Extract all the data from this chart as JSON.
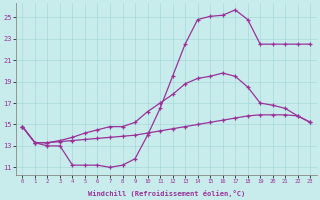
{
  "xlabel": "Windchill (Refroidissement éolien,°C)",
  "bg_color": "#c8ecec",
  "line_color": "#993399",
  "xlim_min": -0.5,
  "xlim_max": 23.5,
  "ylim_min": 10.3,
  "ylim_max": 26.3,
  "yticks": [
    11,
    13,
    15,
    17,
    19,
    21,
    23,
    25
  ],
  "xticks": [
    0,
    1,
    2,
    3,
    4,
    5,
    6,
    7,
    8,
    9,
    10,
    11,
    12,
    13,
    14,
    15,
    16,
    17,
    18,
    19,
    20,
    21,
    22,
    23
  ],
  "line1_x": [
    0,
    1,
    2,
    3,
    4,
    5,
    6,
    7,
    8,
    9,
    10,
    11,
    12,
    13,
    14,
    15,
    16,
    17,
    18,
    19,
    20,
    21,
    22,
    23
  ],
  "line1_y": [
    14.8,
    13.3,
    13.3,
    13.4,
    13.5,
    13.6,
    13.7,
    13.8,
    13.9,
    14.0,
    14.2,
    14.4,
    14.6,
    14.8,
    15.0,
    15.2,
    15.4,
    15.6,
    15.8,
    15.9,
    15.9,
    15.9,
    15.8,
    15.2
  ],
  "line2_x": [
    0,
    1,
    2,
    3,
    4,
    5,
    6,
    7,
    8,
    9,
    10,
    11,
    12,
    13,
    14,
    15,
    16,
    17,
    18,
    19,
    20,
    21,
    22,
    23
  ],
  "line2_y": [
    14.8,
    13.3,
    13.3,
    13.5,
    13.8,
    14.2,
    14.5,
    14.8,
    14.8,
    15.2,
    16.2,
    17.0,
    17.8,
    18.8,
    19.3,
    19.5,
    19.8,
    19.5,
    18.5,
    17.0,
    16.8,
    16.5,
    15.8,
    15.2
  ],
  "line3_x": [
    0,
    1,
    2,
    3,
    4,
    5,
    6,
    7,
    8,
    9,
    10,
    11,
    12,
    13,
    14,
    15,
    16,
    17,
    18,
    19,
    20,
    21,
    22,
    23
  ],
  "line3_y": [
    14.8,
    13.3,
    13.0,
    13.0,
    11.2,
    11.2,
    11.2,
    11.0,
    11.2,
    11.8,
    14.0,
    16.5,
    19.5,
    22.5,
    24.8,
    25.1,
    25.2,
    25.7,
    24.8,
    22.5,
    22.5,
    22.5,
    22.5,
    22.5
  ]
}
